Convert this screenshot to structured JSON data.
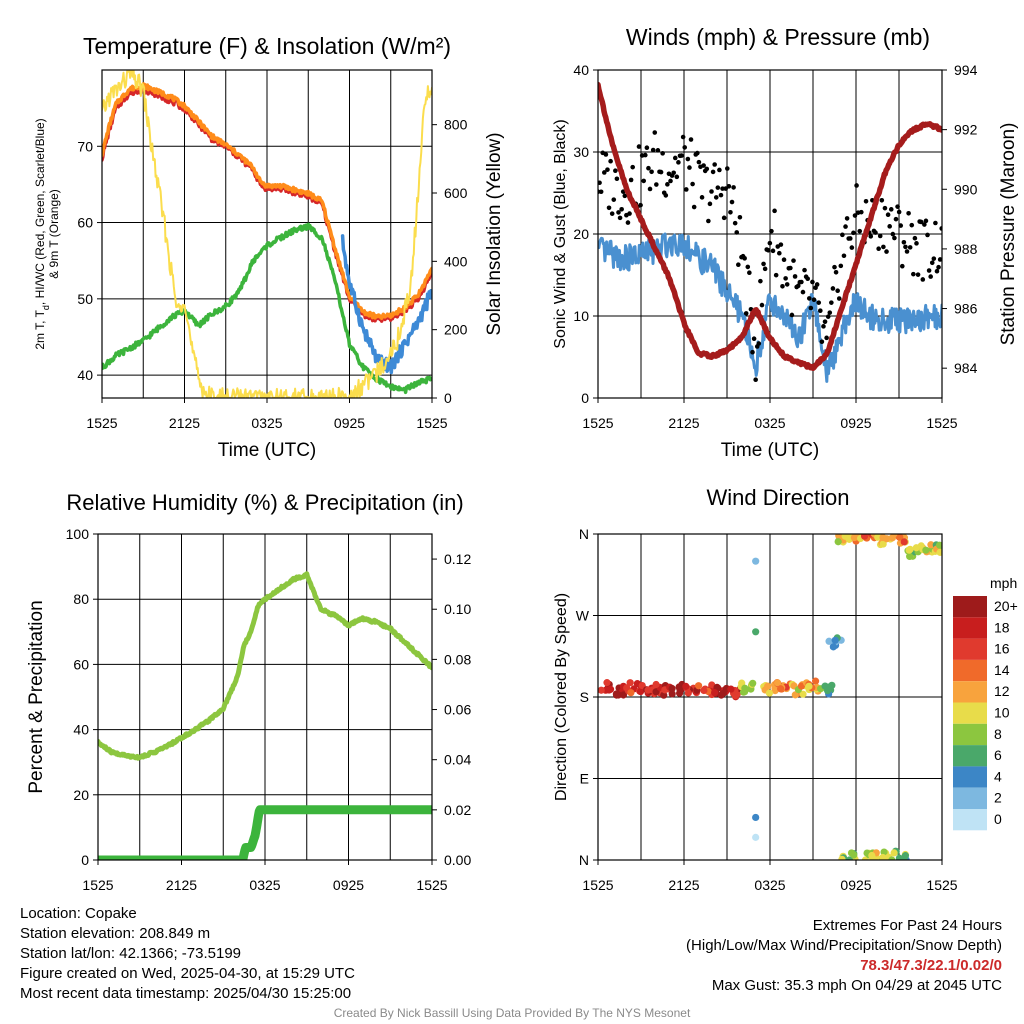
{
  "chart_data": [
    {
      "id": "temp",
      "type": "line",
      "title": "Temperature (F) & Insolation (W/m²)",
      "xlabel": "Time (UTC)",
      "ylabel": "2m T, Td, HI/WC (Red, Green, Scarlet/Blue) & 9m T (Orange)",
      "y2label": "Solar Insolation (Yellow)",
      "xticks": [
        "1525",
        "2125",
        "0325",
        "0925",
        "1525"
      ],
      "xlim": [
        0,
        24
      ],
      "ylim": [
        37,
        80
      ],
      "yticks": [
        40,
        50,
        60,
        70
      ],
      "y2lim": [
        0,
        960
      ],
      "y2ticks": [
        0,
        200,
        400,
        600,
        800
      ],
      "grid": true,
      "series": [
        {
          "key": "temp_2m",
          "axis": "y",
          "color": "#d62728",
          "x": [
            0,
            0.5,
            1,
            2,
            3,
            4,
            5,
            6,
            7,
            8,
            9,
            10,
            11,
            11.5,
            12,
            13,
            14,
            15,
            16,
            17,
            18,
            19,
            20,
            21,
            22,
            23,
            24
          ],
          "y": [
            68.5,
            72,
            75,
            77,
            77.5,
            76.8,
            76,
            75,
            73,
            71,
            70,
            68.5,
            67,
            65,
            64.5,
            64.5,
            64,
            63.5,
            62.5,
            56,
            50,
            48,
            47.3,
            47.5,
            48.5,
            50,
            53.5
          ]
        },
        {
          "key": "temp_9m",
          "axis": "y",
          "color": "#ff8c1a",
          "x": [
            0,
            0.5,
            1,
            2,
            3,
            4,
            5,
            6,
            7,
            8,
            9,
            10,
            11,
            11.5,
            12,
            13,
            14,
            15,
            16,
            17,
            18,
            19,
            20,
            21,
            22,
            23,
            24
          ],
          "y": [
            69,
            72.5,
            75.5,
            77.5,
            78,
            77.2,
            76.5,
            75.3,
            73.3,
            71.3,
            70.2,
            68.8,
            67.2,
            65.4,
            64.8,
            64.8,
            64.3,
            63.8,
            62.8,
            56.3,
            50.3,
            48.3,
            47.6,
            47.8,
            48.8,
            50.5,
            54
          ]
        },
        {
          "key": "dewpoint",
          "axis": "y",
          "color": "#3cb43c",
          "x": [
            0,
            1,
            2,
            3,
            4,
            5,
            6,
            7,
            8,
            9,
            10,
            11,
            12,
            13,
            14,
            15,
            16,
            17,
            18,
            19,
            20,
            21,
            22,
            23,
            24
          ],
          "y": [
            41,
            42.5,
            43.5,
            44.5,
            46,
            47.5,
            48.5,
            46.5,
            48,
            49,
            51,
            55,
            57,
            58,
            59,
            59.5,
            58,
            52,
            44,
            41,
            39.5,
            38.5,
            38,
            39,
            39.5
          ]
        },
        {
          "key": "windchill",
          "axis": "y",
          "color": "#3e8ad6",
          "x": [
            17.5,
            18,
            19,
            20,
            21,
            22,
            23,
            24
          ],
          "y": [
            57.5,
            52,
            46,
            42,
            41,
            44,
            47,
            51
          ]
        },
        {
          "key": "insolation",
          "axis": "y2",
          "color": "#fbdd4d",
          "x": [
            0,
            0.5,
            1,
            1.5,
            2,
            2.5,
            3,
            3.5,
            4,
            4.5,
            5,
            5.5,
            6,
            6.5,
            7,
            7.5,
            8,
            9,
            18,
            19,
            20,
            21,
            21.5,
            22,
            22.5,
            23,
            23.5,
            24
          ],
          "y": [
            830,
            880,
            900,
            920,
            950,
            930,
            900,
            760,
            640,
            520,
            380,
            250,
            300,
            150,
            60,
            15,
            0,
            0,
            0,
            40,
            70,
            140,
            170,
            250,
            350,
            600,
            880,
            900
          ]
        }
      ]
    },
    {
      "id": "wind",
      "type": "scatter",
      "title": "Winds (mph) & Pressure (mb)",
      "xlabel": "Time (UTC)",
      "ylabel": "Sonic Wind & Gust (Blue, Black)",
      "y2label": "Station Pressure (Maroon)",
      "xticks": [
        "1525",
        "2125",
        "0325",
        "0925",
        "1525"
      ],
      "xlim": [
        0,
        24
      ],
      "ylim": [
        0,
        40
      ],
      "yticks": [
        0,
        10,
        20,
        30,
        40
      ],
      "y2lim": [
        983,
        994
      ],
      "y2ticks": [
        984,
        986,
        988,
        990,
        992,
        994
      ],
      "grid": true,
      "series": [
        {
          "key": "sonic_wind",
          "axis": "y",
          "color": "#4a90d0",
          "x": [
            0,
            1,
            2,
            3,
            4,
            5,
            6,
            7,
            8,
            9,
            10,
            11,
            12,
            13,
            14,
            15,
            16,
            17,
            18,
            19,
            20,
            21,
            22,
            23,
            24
          ],
          "y": [
            18,
            17.5,
            17,
            17.5,
            18,
            19,
            19,
            17,
            16,
            13,
            10,
            4,
            12,
            10,
            7,
            12,
            3,
            8,
            12,
            10,
            9.5,
            9.5,
            9.5,
            10,
            10
          ]
        },
        {
          "key": "gust",
          "axis": "y",
          "color": "#000000",
          "x": [
            0,
            1,
            2,
            3,
            4,
            5,
            6,
            7,
            8,
            9,
            10,
            11,
            12,
            13,
            14,
            15,
            16,
            17,
            18,
            19,
            20,
            21,
            22,
            23,
            24
          ],
          "y": [
            27,
            26,
            25,
            27,
            29,
            28,
            29,
            26,
            25,
            26,
            18,
            6,
            21,
            16,
            12,
            12,
            6,
            18,
            22,
            21,
            22,
            20,
            19,
            18,
            19
          ]
        },
        {
          "key": "pressure",
          "axis": "y2",
          "color": "#a51c1c",
          "x": [
            0,
            1,
            2,
            3,
            4,
            5,
            6,
            7,
            8,
            9,
            10,
            11,
            12,
            13,
            14,
            15,
            16,
            17,
            18,
            19,
            20,
            21,
            22,
            23,
            24
          ],
          "y": [
            993.5,
            991.5,
            990,
            989,
            988,
            987,
            985.5,
            984.5,
            984.4,
            984.6,
            985,
            986,
            985,
            984.4,
            984.2,
            984,
            984.5,
            986,
            987.5,
            989,
            990.5,
            991.5,
            992,
            992.2,
            992
          ]
        }
      ]
    },
    {
      "id": "rh",
      "type": "line",
      "title": "Relative Humidity (%) & Precipitation (in)",
      "xlabel": "",
      "ylabel": "Percent & Precipitation",
      "xticks": [
        "1525",
        "2125",
        "0325",
        "0925",
        "1525"
      ],
      "xlim": [
        0,
        24
      ],
      "ylim": [
        0,
        100
      ],
      "yticks": [
        0,
        20,
        40,
        60,
        80,
        100
      ],
      "y2lim": [
        0,
        0.13
      ],
      "y2ticks": [
        "0.00",
        "0.02",
        "0.04",
        "0.06",
        "0.08",
        "0.10",
        "0.12"
      ],
      "grid": true,
      "series": [
        {
          "key": "rh",
          "axis": "y",
          "color": "#8cc63f",
          "x": [
            0,
            1,
            2,
            3,
            4,
            5,
            6,
            7,
            8,
            9,
            10,
            10.5,
            11,
            11.5,
            12,
            13,
            14,
            15,
            16,
            17,
            18,
            19,
            20,
            21,
            22,
            23,
            24
          ],
          "y": [
            36,
            33,
            32,
            31.5,
            33,
            35,
            37.5,
            40,
            43,
            46.5,
            56,
            66,
            70,
            78,
            80,
            83,
            86,
            87.5,
            77,
            75,
            72,
            74,
            73,
            71,
            67,
            63,
            59
          ]
        },
        {
          "key": "precip",
          "axis": "y2",
          "color": "#3cb43c",
          "x": [
            0,
            10.4,
            10.6,
            11,
            11.3,
            11.6,
            12,
            24
          ],
          "y": [
            0,
            0,
            0.005,
            0.005,
            0.01,
            0.02,
            0.02,
            0.02
          ]
        }
      ]
    },
    {
      "id": "dir",
      "type": "scatter",
      "title": "Wind Direction",
      "xlabel": "",
      "ylabel": "Direction (Colored By Speed)",
      "xticks": [
        "1525",
        "2125",
        "0325",
        "0925",
        "1525"
      ],
      "xlim": [
        0,
        24
      ],
      "ylim": [
        0,
        360
      ],
      "yticks": [
        "N",
        "E",
        "S",
        "W",
        "N"
      ],
      "grid": true,
      "legend": {
        "title": "mph",
        "labels": [
          "20+",
          "18",
          "16",
          "14",
          "12",
          "10",
          "8",
          "6",
          "4",
          "2",
          "0"
        ],
        "colors": [
          "#9e1b1b",
          "#c81e1e",
          "#e03a2e",
          "#f06a2a",
          "#f8a33d",
          "#e8dc4a",
          "#8cc63f",
          "#4aa86a",
          "#3c86c6",
          "#7db8e0",
          "#bfe3f5"
        ]
      },
      "series": [
        {
          "key": "direction",
          "points": [
            [
              0.5,
              192,
              18
            ],
            [
              1.5,
              188,
              20
            ],
            [
              2.5,
              190,
              16
            ],
            [
              3.5,
              188,
              18
            ],
            [
              4.5,
              188,
              17
            ],
            [
              5.5,
              189,
              20
            ],
            [
              6.5,
              186,
              18
            ],
            [
              7.5,
              188,
              16
            ],
            [
              8.5,
              185,
              19
            ],
            [
              9.5,
              186,
              18
            ],
            [
              10.3,
              190,
              9
            ],
            [
              11.0,
              252,
              3
            ],
            [
              11.0,
              330,
              4
            ],
            [
              11.0,
              47,
              3
            ],
            [
              11.0,
              25,
              3
            ],
            [
              12.0,
              190,
              12
            ],
            [
              13.0,
              190,
              14
            ],
            [
              14.0,
              188,
              11
            ],
            [
              15.0,
              192,
              12
            ],
            [
              16.0,
              188,
              6
            ],
            [
              16.5,
              240,
              3
            ],
            [
              17.0,
              355,
              9
            ],
            [
              18.0,
              358,
              12
            ],
            [
              19.0,
              360,
              15
            ],
            [
              20.0,
              352,
              10
            ],
            [
              21.0,
              355,
              13
            ],
            [
              22.0,
              340,
              9
            ],
            [
              23.0,
              343,
              10
            ],
            [
              24.0,
              345,
              9
            ],
            [
              17.5,
              3,
              8
            ],
            [
              19.0,
              2,
              9
            ],
            [
              20.0,
              3,
              8
            ],
            [
              21.0,
              4,
              7
            ]
          ]
        }
      ]
    }
  ],
  "info": {
    "location": "Location: Copake",
    "elevation": "Station elevation: 208.849 m",
    "latlon": "Station lat/lon: 42.1366; -73.5199",
    "created": "Figure created on Wed, 2025-04-30, at 15:29 UTC",
    "recent": "Most recent data timestamp: 2025/04/30 15:25:00"
  },
  "extremes": {
    "heading": "Extremes For Past 24 Hours",
    "subheading": "(High/Low/Max Wind/Precipitation/Snow Depth)",
    "values": "78.3/47.3/22.1/0.02/0",
    "gust": "Max Gust: 35.3 mph On 04/29 at 2045 UTC"
  },
  "credit": "Created By Nick Bassill Using Data Provided By The NYS Mesonet"
}
